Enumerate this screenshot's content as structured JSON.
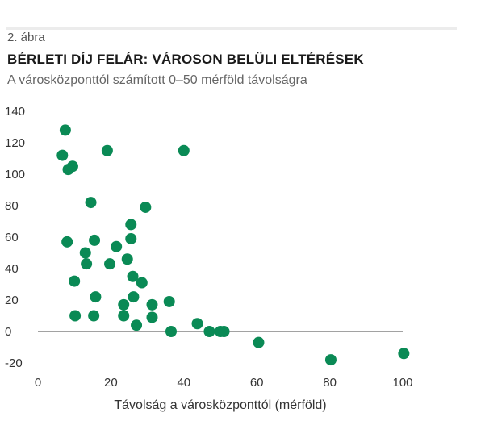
{
  "figure": {
    "label": "2. ábra",
    "title": "BÉRLETI DÍJ FELÁR: VÁROSON BELÜLI ELTÉRÉSEK",
    "subtitle": "A városközponttól számított 0–50 mérföld távolságra"
  },
  "chart_data": {
    "type": "scatter",
    "xlabel": "Távolság a városközponttól (mérföld)",
    "ylabel": "",
    "xlim": [
      0,
      100
    ],
    "ylim": [
      -20,
      140
    ],
    "xticks": [
      0,
      20,
      40,
      60,
      80,
      100
    ],
    "yticks": [
      -20,
      0,
      20,
      40,
      60,
      80,
      100,
      120,
      140
    ],
    "grid": false,
    "zero_line": true,
    "marker_color": "#0a8a55",
    "series": [
      {
        "points": [
          {
            "x": 7.5,
            "y": 128
          },
          {
            "x": 6.7,
            "y": 112
          },
          {
            "x": 9.5,
            "y": 105
          },
          {
            "x": 8.3,
            "y": 103
          },
          {
            "x": 19,
            "y": 115
          },
          {
            "x": 40,
            "y": 115
          },
          {
            "x": 14.5,
            "y": 82
          },
          {
            "x": 29.5,
            "y": 79
          },
          {
            "x": 25.5,
            "y": 68
          },
          {
            "x": 8,
            "y": 57
          },
          {
            "x": 15.5,
            "y": 58
          },
          {
            "x": 25.5,
            "y": 59
          },
          {
            "x": 21.5,
            "y": 54
          },
          {
            "x": 13,
            "y": 50
          },
          {
            "x": 24.5,
            "y": 46
          },
          {
            "x": 13.3,
            "y": 43
          },
          {
            "x": 19.7,
            "y": 43
          },
          {
            "x": 26,
            "y": 35
          },
          {
            "x": 10,
            "y": 32
          },
          {
            "x": 28.5,
            "y": 31
          },
          {
            "x": 15.8,
            "y": 22
          },
          {
            "x": 26.2,
            "y": 22
          },
          {
            "x": 36,
            "y": 19
          },
          {
            "x": 23.5,
            "y": 17
          },
          {
            "x": 31.3,
            "y": 17
          },
          {
            "x": 10.2,
            "y": 10
          },
          {
            "x": 15.3,
            "y": 10
          },
          {
            "x": 23.5,
            "y": 10
          },
          {
            "x": 31.3,
            "y": 9
          },
          {
            "x": 27,
            "y": 4
          },
          {
            "x": 43.7,
            "y": 5
          },
          {
            "x": 36.5,
            "y": 0
          },
          {
            "x": 47,
            "y": 0
          },
          {
            "x": 50,
            "y": 0
          },
          {
            "x": 51,
            "y": 0
          },
          {
            "x": 60.5,
            "y": -7
          },
          {
            "x": 80.3,
            "y": -18
          },
          {
            "x": 100.3,
            "y": -14
          }
        ]
      }
    ]
  }
}
